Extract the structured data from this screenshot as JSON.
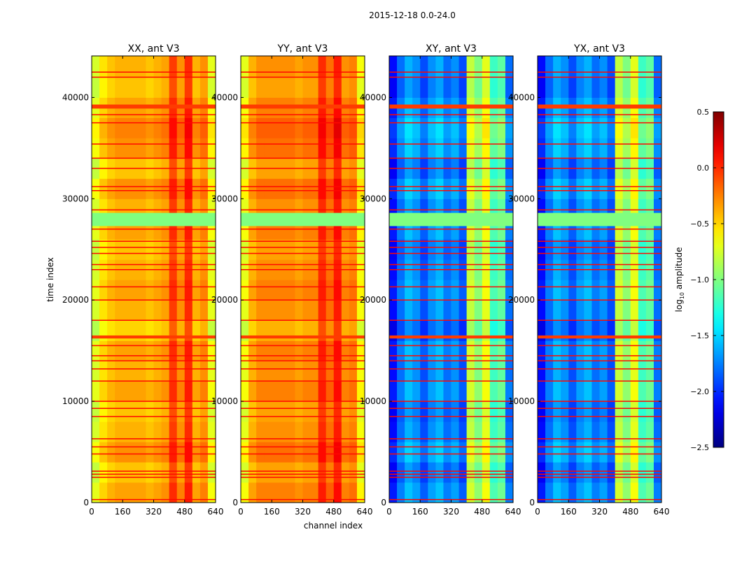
{
  "chart_data": {
    "type": "heatmap",
    "title": "2015-12-18 0.0-24.0",
    "xlabel": "channel index",
    "ylabel": "time index",
    "xlim": [
      0,
      640
    ],
    "ylim": [
      0,
      44100
    ],
    "xticks": [
      "0",
      "160",
      "320",
      "480",
      "640"
    ],
    "xtick_values": [
      0,
      160,
      320,
      480,
      640
    ],
    "yticks": [
      "0",
      "10000",
      "20000",
      "30000",
      "40000"
    ],
    "ytick_values": [
      0,
      10000,
      20000,
      30000,
      40000
    ],
    "colormap": "jet",
    "colorbar": {
      "label_prefix": "log",
      "label_sub": "10",
      "label_suffix": " amplitude",
      "range": [
        -2.5,
        0.5
      ],
      "ticks": [
        "0.5",
        "0.0",
        "−0.5",
        "−1.0",
        "−1.5",
        "−2.0",
        "−2.5"
      ],
      "tick_values": [
        0.5,
        0.0,
        -0.5,
        -1.0,
        -1.5,
        -2.0,
        -2.5
      ]
    },
    "channel_bin_width": 40,
    "time_bin_width": 2000,
    "time_modulation": [
      0.05,
      -0.05,
      0.1,
      0.0,
      -0.05,
      0.05,
      0.0,
      0.05,
      -0.1,
      0.0,
      0.05,
      0.0,
      -0.05,
      0.05,
      0.0,
      0.1,
      -0.05,
      0.1,
      0.15,
      0.05,
      -0.05,
      0.0,
      0.0
    ],
    "flagged_rows": [
      300,
      2500,
      2800,
      3100,
      4800,
      5500,
      6300,
      8500,
      9300,
      10000,
      12000,
      13200,
      14000,
      14500,
      15500,
      18000,
      20000,
      21300,
      23000,
      23500,
      24600,
      25200,
      25800,
      27000,
      28900,
      30800,
      31200,
      33000,
      34000,
      35400,
      37500,
      38300,
      42000,
      42500
    ],
    "flagged_row_value": 0.1,
    "bands": [
      {
        "from": 27300,
        "to": 28600,
        "value": -1.0
      },
      {
        "from": 16200,
        "to": 16500,
        "value": -0.05
      },
      {
        "from": 38900,
        "to": 39300,
        "value": -0.05
      }
    ],
    "panels": [
      {
        "title": "XX, ant V3",
        "channel_profile": [
          -0.75,
          -0.55,
          -0.45,
          -0.4,
          -0.4,
          -0.4,
          -0.4,
          -0.45,
          -0.4,
          -0.35,
          -0.05,
          -0.3,
          0.0,
          -0.4,
          -0.3,
          -0.7
        ]
      },
      {
        "title": "YY, ant V3",
        "channel_profile": [
          -0.7,
          -0.4,
          -0.3,
          -0.3,
          -0.3,
          -0.3,
          -0.3,
          -0.35,
          -0.3,
          -0.3,
          0.0,
          -0.2,
          0.05,
          -0.3,
          -0.25,
          -0.65
        ]
      },
      {
        "title": "XY, ant V3",
        "channel_profile": [
          -2.1,
          -1.8,
          -1.6,
          -1.7,
          -1.9,
          -1.7,
          -1.6,
          -1.8,
          -1.7,
          -1.9,
          -0.8,
          -1.0,
          -0.7,
          -1.2,
          -1.1,
          -1.8
        ]
      },
      {
        "title": "YX, ant V3",
        "channel_profile": [
          -2.1,
          -1.8,
          -1.6,
          -1.7,
          -1.9,
          -1.7,
          -1.6,
          -1.8,
          -1.7,
          -1.9,
          -0.8,
          -1.0,
          -0.7,
          -1.2,
          -1.1,
          -1.8
        ]
      }
    ]
  }
}
